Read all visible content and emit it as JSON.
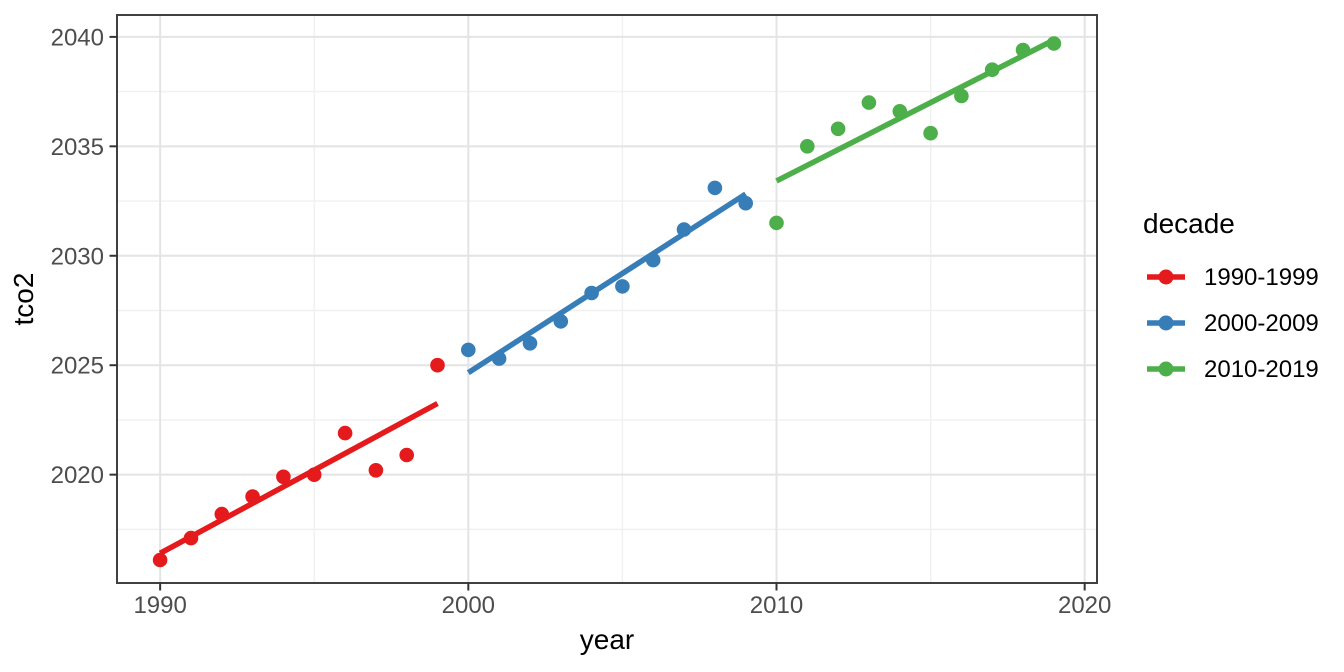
{
  "chart_data": {
    "type": "scatter",
    "title": "",
    "xlabel": "year",
    "ylabel": "tco2",
    "legend_title": "decade",
    "legend_position": "right",
    "smooth": "lm",
    "grid": "major+minor",
    "xlim": [
      1988.6,
      2020.4
    ],
    "ylim": [
      2015.05,
      2041.0
    ],
    "x_ticks": [
      1990,
      2000,
      2010,
      2020
    ],
    "y_ticks": [
      2020,
      2025,
      2030,
      2035,
      2040
    ],
    "x_tick_labels": [
      "1990",
      "2000",
      "2010",
      "2020"
    ],
    "y_tick_labels": [
      "2020",
      "2025",
      "2030",
      "2035",
      "2040"
    ],
    "series": [
      {
        "name": "1990-1999",
        "color": "#E41A1C",
        "x": [
          1990,
          1991,
          1992,
          1993,
          1994,
          1995,
          1996,
          1997,
          1998,
          1999
        ],
        "y": [
          2016.1,
          2017.1,
          2018.2,
          2019.0,
          2019.9,
          2020.0,
          2021.9,
          2020.2,
          2020.9,
          2025.0
        ]
      },
      {
        "name": "2000-2009",
        "color": "#377EB8",
        "x": [
          2000,
          2001,
          2002,
          2003,
          2004,
          2005,
          2006,
          2007,
          2008,
          2009
        ],
        "y": [
          2025.7,
          2025.3,
          2026.0,
          2027.0,
          2028.3,
          2028.6,
          2029.8,
          2031.2,
          2033.1,
          2032.4
        ]
      },
      {
        "name": "2010-2019",
        "color": "#4DAF4A",
        "x": [
          2010,
          2011,
          2012,
          2013,
          2014,
          2015,
          2016,
          2017,
          2018,
          2019
        ],
        "y": [
          2031.5,
          2035.0,
          2035.8,
          2037.0,
          2036.6,
          2035.6,
          2037.3,
          2038.5,
          2039.4,
          2039.7
        ]
      }
    ]
  },
  "theme": {
    "background": "#FFFFFF",
    "panel_background": "#FFFFFF",
    "panel_border": "#404040",
    "grid_major": "#E4E4E4",
    "grid_minor": "#F0F0F0",
    "tick_mark": "#333333",
    "tick_label": "#4D4D4D",
    "axis_title": "#000000",
    "legend_text": "#000000"
  }
}
